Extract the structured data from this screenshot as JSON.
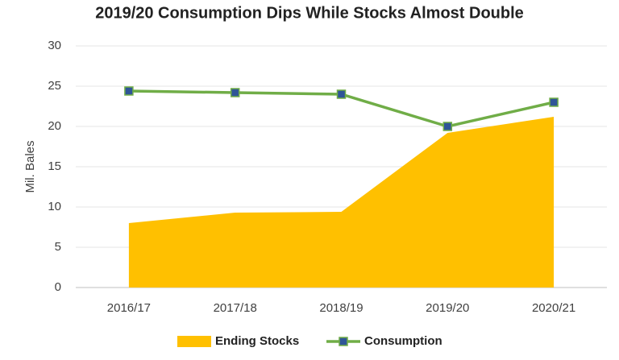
{
  "chart_data": {
    "type": "combo",
    "title": "2019/20 Consumption Dips While Stocks Almost Double",
    "y_label": "Mil. Bales",
    "categories": [
      "2016/17",
      "2017/18",
      "2018/19",
      "2019/20",
      "2020/21"
    ],
    "series": [
      {
        "name": "Ending Stocks",
        "type": "area",
        "color": "#FFC000",
        "values": [
          8.0,
          9.3,
          9.4,
          19.2,
          21.2
        ]
      },
      {
        "name": "Consumption",
        "type": "line",
        "color": "#70AD47",
        "marker_color": "#2F5597",
        "values": [
          24.4,
          24.2,
          24.0,
          20.0,
          23.0
        ]
      }
    ],
    "ylim": [
      0,
      30
    ],
    "yticks": [
      0,
      5,
      10,
      15,
      20,
      25,
      30
    ],
    "grid": true
  }
}
